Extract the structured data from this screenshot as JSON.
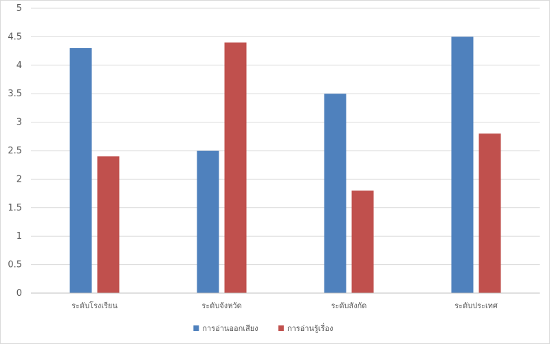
{
  "chart_data": {
    "type": "bar",
    "categories": [
      "ระดับโรงเรียน",
      "ระดับจังหวัด",
      "ระดับสังกัด",
      "ระดับประเทศ"
    ],
    "series": [
      {
        "name": "การอ่านออกเสียง",
        "color": "#4f81bd",
        "values": [
          4.3,
          2.5,
          3.5,
          4.5
        ]
      },
      {
        "name": "การอ่านรู้เรื่อง",
        "color": "#c0504d",
        "values": [
          2.4,
          4.4,
          1.8,
          2.8
        ]
      }
    ],
    "ylim": [
      0,
      5
    ],
    "yticks": [
      "0",
      "0.5",
      "1",
      "1.5",
      "2",
      "2.5",
      "3",
      "3.5",
      "4",
      "4.5",
      "5"
    ],
    "title": "",
    "xlabel": "",
    "ylabel": "",
    "grid": true,
    "legend": "bottom"
  }
}
